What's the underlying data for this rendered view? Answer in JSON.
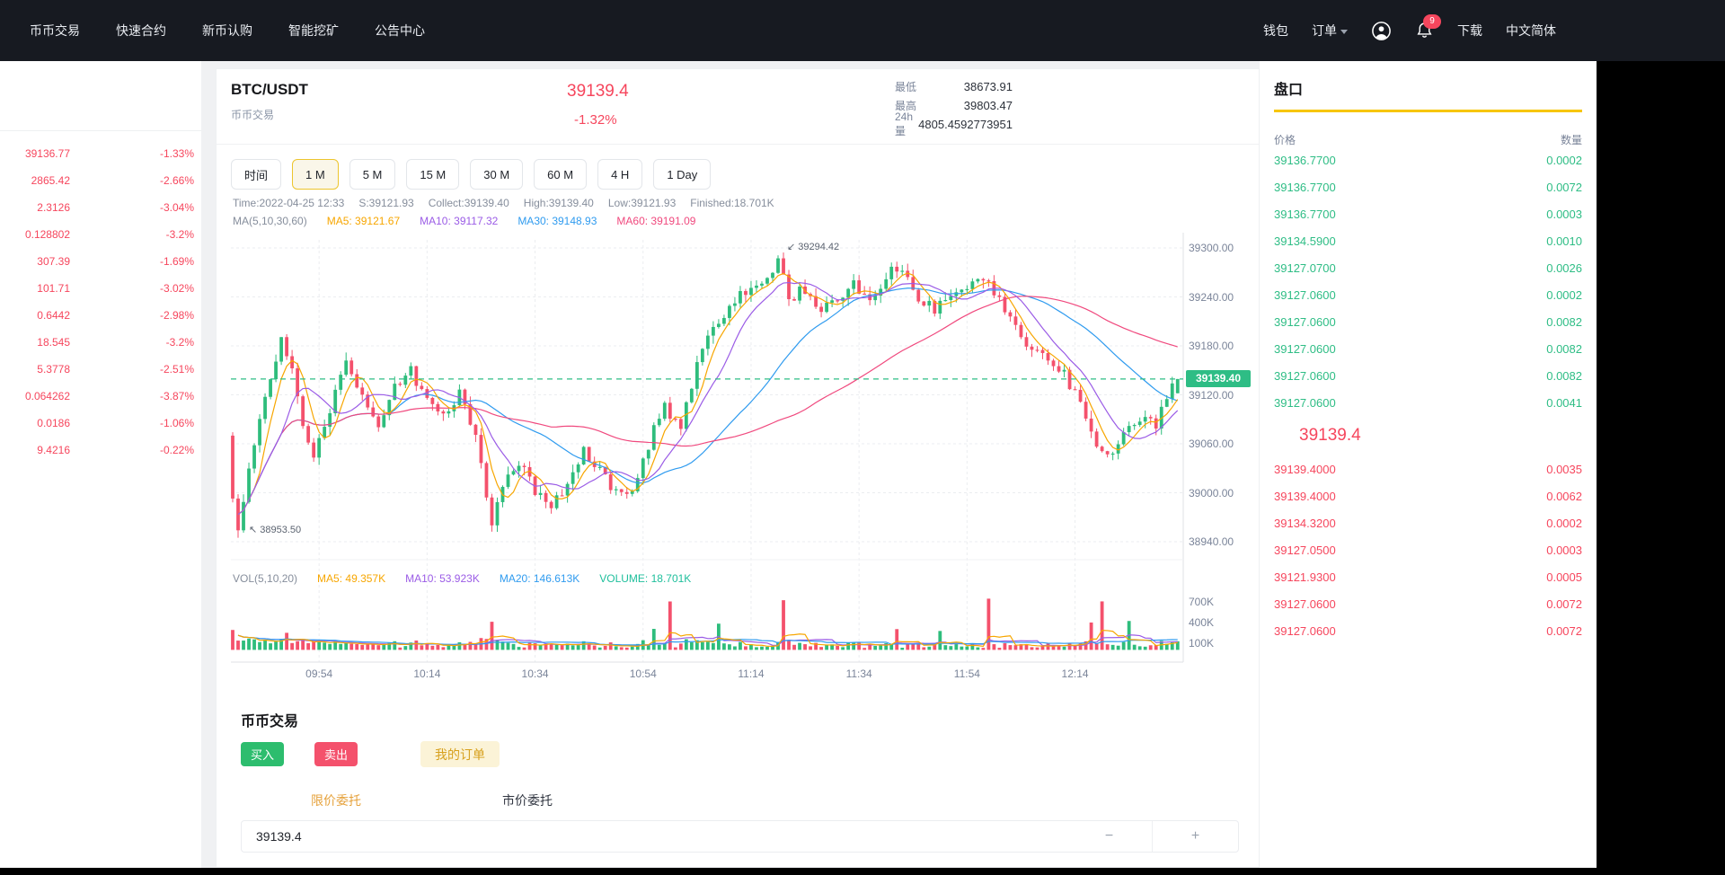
{
  "nav": {
    "left": [
      "币币交易",
      "快速合约",
      "新币认购",
      "智能挖矿",
      "公告中心"
    ],
    "right": {
      "wallet": "钱包",
      "orders": "订单",
      "download": "下载",
      "language": "中文简体",
      "notification_badge": "9"
    }
  },
  "sidebar": {
    "rows": [
      {
        "price": "39136.77",
        "pct": "-1.33%"
      },
      {
        "price": "2865.42",
        "pct": "-2.66%"
      },
      {
        "price": "2.3126",
        "pct": "-3.04%"
      },
      {
        "price": "0.128802",
        "pct": "-3.2%"
      },
      {
        "price": "307.39",
        "pct": "-1.69%"
      },
      {
        "price": "101.71",
        "pct": "-3.02%"
      },
      {
        "price": "0.6442",
        "pct": "-2.98%"
      },
      {
        "price": "18.545",
        "pct": "-3.2%"
      },
      {
        "price": "5.3778",
        "pct": "-2.51%"
      },
      {
        "price": "0.064262",
        "pct": "-3.87%"
      },
      {
        "price": "0.0186",
        "pct": "-1.06%"
      },
      {
        "price": "9.4216",
        "pct": "-0.22%"
      }
    ]
  },
  "market_header": {
    "symbol": "BTC/USDT",
    "market_label": "币币交易",
    "price": "39139.4",
    "change": "-1.32%",
    "stats": [
      {
        "label": "最低",
        "value": "38673.91"
      },
      {
        "label": "最高",
        "value": "39803.47"
      },
      {
        "label": "24h量",
        "value": "4805.4592773951"
      }
    ]
  },
  "toolbar": {
    "time_label": "时间",
    "periods": [
      "1 M",
      "5 M",
      "15 M",
      "30 M",
      "60 M",
      "4 H",
      "1 Day"
    ],
    "active": "1 M"
  },
  "chart_info": {
    "items": [
      "Time:2022-04-25 12:33",
      "S:39121.93",
      "Collect:39139.40",
      "High:39139.40",
      "Low:39121.93",
      "Finished:18.701K"
    ],
    "ma_label": "MA(5,10,30,60)",
    "ma_items": [
      {
        "name": "MA5",
        "text": "MA5: 39121.67",
        "color": "#f7a600"
      },
      {
        "name": "MA10",
        "text": "MA10: 39117.32",
        "color": "#9b5ce6"
      },
      {
        "name": "MA30",
        "text": "MA30: 39148.93",
        "color": "#2f9bef"
      },
      {
        "name": "MA60",
        "text": "MA60: 39191.09",
        "color": "#f0497e"
      }
    ],
    "vol_label": "VOL(5,10,20)",
    "vol_items": [
      {
        "name": "MA5",
        "text": "MA5: 49.357K",
        "color": "#f7a600"
      },
      {
        "name": "MA10",
        "text": "MA10: 53.923K",
        "color": "#9b5ce6"
      },
      {
        "name": "MA20",
        "text": "MA20: 146.613K",
        "color": "#2f9bef"
      },
      {
        "name": "VOLUME",
        "text": "VOLUME: 18.701K",
        "color": "#1fbf9c"
      }
    ]
  },
  "chart_data": {
    "type": "candlestick",
    "symbol": "BTC/USDT",
    "interval": "1m",
    "time_start": "09:38",
    "time_end": "12:33",
    "x_ticks": [
      {
        "label": "09:54",
        "minute": 16
      },
      {
        "label": "10:14",
        "minute": 36
      },
      {
        "label": "10:34",
        "minute": 56
      },
      {
        "label": "10:54",
        "minute": 76
      },
      {
        "label": "11:14",
        "minute": 96
      },
      {
        "label": "11:34",
        "minute": 116
      },
      {
        "label": "11:54",
        "minute": 136
      },
      {
        "label": "12:14",
        "minute": 156
      }
    ],
    "y_ticks": [
      "39300.00",
      "39240.00",
      "39180.00",
      "39120.00",
      "39060.00",
      "39000.00",
      "38940.00"
    ],
    "y_top": 39300,
    "y_step": 60,
    "vol_ticks": [
      "700K",
      "400K",
      "100K"
    ],
    "current_price": 39139.4,
    "current_price_label": "39139.40",
    "last_candle": {
      "open": 39121.93,
      "close": 39139.4,
      "high": 39139.4,
      "low": 39121.93,
      "volume": "18.701K"
    },
    "annotations": [
      {
        "type": "high",
        "text": "39294.42",
        "minute": 102,
        "price": 39294.42
      },
      {
        "type": "low",
        "text": "38953.50",
        "minute": 2,
        "price": 38953.5
      }
    ],
    "price_keyframes": [
      [
        0,
        39070
      ],
      [
        1,
        38990
      ],
      [
        2,
        38958
      ],
      [
        3,
        38995
      ],
      [
        5,
        39060
      ],
      [
        7,
        39120
      ],
      [
        9,
        39165
      ],
      [
        10,
        39195
      ],
      [
        12,
        39150
      ],
      [
        14,
        39085
      ],
      [
        16,
        39045
      ],
      [
        19,
        39105
      ],
      [
        22,
        39160
      ],
      [
        25,
        39115
      ],
      [
        28,
        39085
      ],
      [
        31,
        39130
      ],
      [
        34,
        39150
      ],
      [
        37,
        39110
      ],
      [
        40,
        39090
      ],
      [
        43,
        39120
      ],
      [
        46,
        39070
      ],
      [
        48,
        38998
      ],
      [
        49,
        38962
      ],
      [
        51,
        39010
      ],
      [
        54,
        39040
      ],
      [
        57,
        38998
      ],
      [
        60,
        38985
      ],
      [
        63,
        39010
      ],
      [
        66,
        39050
      ],
      [
        69,
        39030
      ],
      [
        72,
        38998
      ],
      [
        75,
        39005
      ],
      [
        78,
        39060
      ],
      [
        81,
        39110
      ],
      [
        84,
        39075
      ],
      [
        87,
        39160
      ],
      [
        90,
        39200
      ],
      [
        93,
        39230
      ],
      [
        96,
        39250
      ],
      [
        99,
        39260
      ],
      [
        102,
        39280
      ],
      [
        104,
        39240
      ],
      [
        107,
        39250
      ],
      [
        110,
        39225
      ],
      [
        113,
        39240
      ],
      [
        116,
        39255
      ],
      [
        119,
        39235
      ],
      [
        122,
        39265
      ],
      [
        125,
        39280
      ],
      [
        128,
        39240
      ],
      [
        131,
        39225
      ],
      [
        134,
        39235
      ],
      [
        137,
        39245
      ],
      [
        140,
        39265
      ],
      [
        143,
        39240
      ],
      [
        146,
        39200
      ],
      [
        149,
        39180
      ],
      [
        152,
        39160
      ],
      [
        155,
        39145
      ],
      [
        158,
        39110
      ],
      [
        161,
        39060
      ],
      [
        163,
        39040
      ],
      [
        166,
        39075
      ],
      [
        169,
        39095
      ],
      [
        172,
        39085
      ],
      [
        175,
        39139.4
      ]
    ],
    "volume_spikes_k": {
      "10": 260,
      "48": 430,
      "78": 300,
      "81": 700,
      "90": 380,
      "102": 730,
      "123": 300,
      "131": 260,
      "140": 740,
      "159": 380,
      "161": 700,
      "166": 430
    },
    "colors": {
      "up": "#2ebd7c",
      "down": "#f4516c",
      "grid": "#ebedf0",
      "axis": "#dfe2e6",
      "current_line": "#2ebd85"
    }
  },
  "trade_section": {
    "title": "币币交易",
    "buy_label": "买入",
    "sell_label": "卖出",
    "my_orders_label": "我的订单",
    "tab_limit": "限价委托",
    "tab_market": "市价委托",
    "price_value": "39139.4",
    "minus": "−",
    "plus": "+"
  },
  "orderbook": {
    "title": "盘口",
    "col_price": "价格",
    "col_qty": "数量",
    "asks": [
      {
        "price": "39136.7700",
        "qty": "0.0002"
      },
      {
        "price": "39136.7700",
        "qty": "0.0072"
      },
      {
        "price": "39136.7700",
        "qty": "0.0003"
      },
      {
        "price": "39134.5900",
        "qty": "0.0010"
      },
      {
        "price": "39127.0700",
        "qty": "0.0026"
      },
      {
        "price": "39127.0600",
        "qty": "0.0002"
      },
      {
        "price": "39127.0600",
        "qty": "0.0082"
      },
      {
        "price": "39127.0600",
        "qty": "0.0082"
      },
      {
        "price": "39127.0600",
        "qty": "0.0082"
      },
      {
        "price": "39127.0600",
        "qty": "0.0041"
      }
    ],
    "last_price": "39139.4",
    "bids": [
      {
        "price": "39139.4000",
        "qty": "0.0035"
      },
      {
        "price": "39139.4000",
        "qty": "0.0062"
      },
      {
        "price": "39134.3200",
        "qty": "0.0002"
      },
      {
        "price": "39127.0500",
        "qty": "0.0003"
      },
      {
        "price": "39121.9300",
        "qty": "0.0005"
      },
      {
        "price": "39127.0600",
        "qty": "0.0072"
      },
      {
        "price": "39127.0600",
        "qty": "0.0072"
      }
    ]
  }
}
